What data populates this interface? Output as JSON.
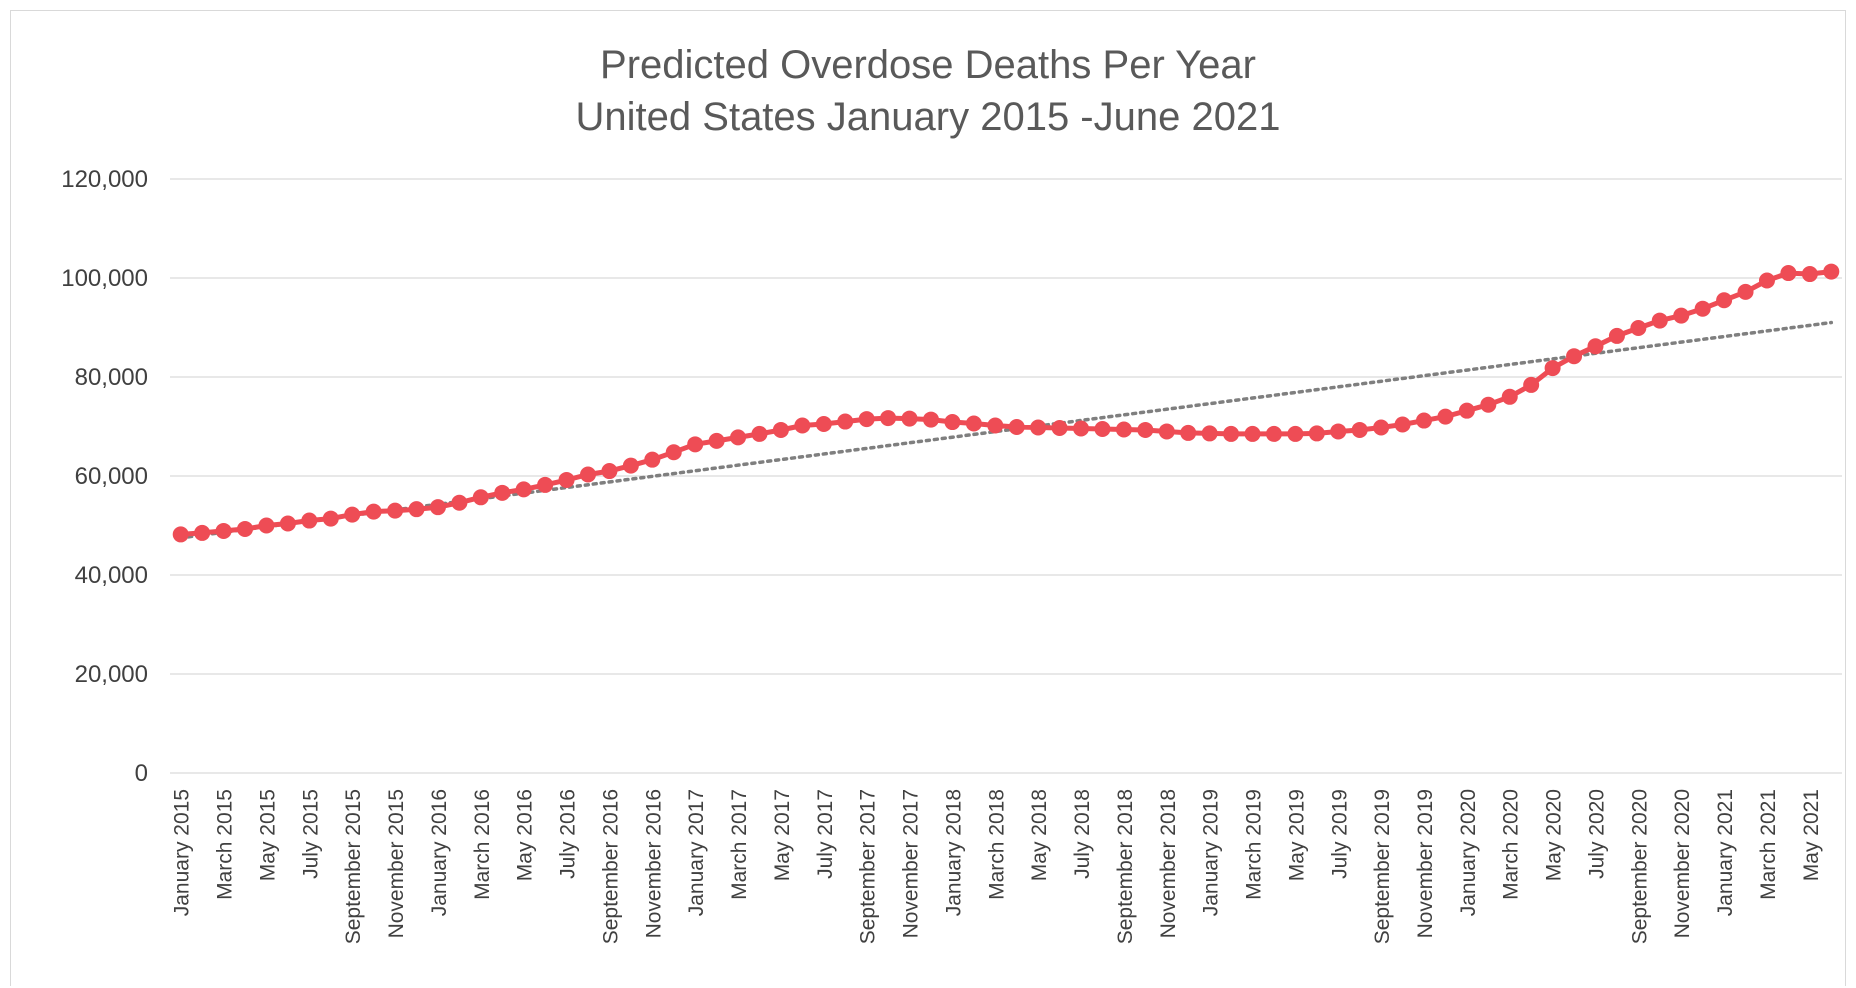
{
  "chart_data": {
    "type": "line",
    "title_lines": [
      "Predicted Overdose Deaths Per Year",
      "United States January 2015 -June 2021"
    ],
    "xlabel": "",
    "ylabel": "",
    "ylim": [
      0,
      120000
    ],
    "yticks": [
      0,
      20000,
      40000,
      60000,
      80000,
      100000,
      120000
    ],
    "ytick_labels": [
      "0",
      "20,000",
      "40,000",
      "60,000",
      "80,000",
      "100,000",
      "120,000"
    ],
    "grid": "horizontal",
    "legend": "none",
    "categories": [
      "January 2015",
      "February 2015",
      "March 2015",
      "April 2015",
      "May 2015",
      "June 2015",
      "July 2015",
      "August 2015",
      "September 2015",
      "October 2015",
      "November 2015",
      "December 2015",
      "January 2016",
      "February 2016",
      "March 2016",
      "April 2016",
      "May 2016",
      "June 2016",
      "July 2016",
      "August 2016",
      "September 2016",
      "October 2016",
      "November 2016",
      "December 2016",
      "January 2017",
      "February 2017",
      "March 2017",
      "April 2017",
      "May 2017",
      "June 2017",
      "July 2017",
      "August 2017",
      "September 2017",
      "October 2017",
      "November 2017",
      "December 2017",
      "January 2018",
      "February 2018",
      "March 2018",
      "April 2018",
      "May 2018",
      "June 2018",
      "July 2018",
      "August 2018",
      "September 2018",
      "October 2018",
      "November 2018",
      "December 2018",
      "January 2019",
      "February 2019",
      "March 2019",
      "April 2019",
      "May 2019",
      "June 2019",
      "July 2019",
      "August 2019",
      "September 2019",
      "October 2019",
      "November 2019",
      "December 2019",
      "January 2020",
      "February 2020",
      "March 2020",
      "April 2020",
      "May 2020",
      "June 2020",
      "July 2020",
      "August 2020",
      "September 2020",
      "October 2020",
      "November 2020",
      "December 2020",
      "January 2021",
      "February 2021",
      "March 2021",
      "April 2021",
      "May 2021",
      "June 2021"
    ],
    "visible_tick_labels": [
      "January 2015",
      "March 2015",
      "May 2015",
      "July 2015",
      "September 2015",
      "November 2015",
      "January 2016",
      "March 2016",
      "May 2016",
      "July 2016",
      "September 2016",
      "November 2016",
      "January 2017",
      "March 2017",
      "May 2017",
      "July 2017",
      "September 2017",
      "November 2017",
      "January 2018",
      "March 2018",
      "May 2018",
      "July 2018",
      "September 2018",
      "November 2018",
      "January 2019",
      "March 2019",
      "May 2019",
      "July 2019",
      "September 2019",
      "November 2019",
      "January 2020",
      "March 2020",
      "May 2020",
      "July 2020",
      "September 2020",
      "November 2020",
      "January 2021",
      "March 2021",
      "May 2021"
    ],
    "series": [
      {
        "color": "#ee4c55",
        "marker": "circle",
        "values": [
          48200,
          48500,
          48900,
          49300,
          50000,
          50400,
          51000,
          51400,
          52200,
          52800,
          53000,
          53300,
          53700,
          54600,
          55700,
          56600,
          57300,
          58200,
          59200,
          60300,
          61000,
          62100,
          63300,
          64800,
          66400,
          67100,
          67800,
          68500,
          69300,
          70200,
          70500,
          71000,
          71500,
          71700,
          71600,
          71400,
          70900,
          70600,
          70200,
          69900,
          69800,
          69700,
          69600,
          69500,
          69400,
          69300,
          69000,
          68700,
          68600,
          68500,
          68500,
          68500,
          68500,
          68600,
          69000,
          69300,
          69800,
          70400,
          71200,
          72000,
          73200,
          74400,
          76000,
          78400,
          81800,
          84200,
          86200,
          88300,
          89900,
          91400,
          92400,
          93800,
          95500,
          97200,
          99500,
          101000,
          100800,
          101300
        ]
      },
      {
        "type": "trendline",
        "style": "dotted",
        "color": "#7f7f7f",
        "start": 47500,
        "end": 91000
      }
    ]
  }
}
